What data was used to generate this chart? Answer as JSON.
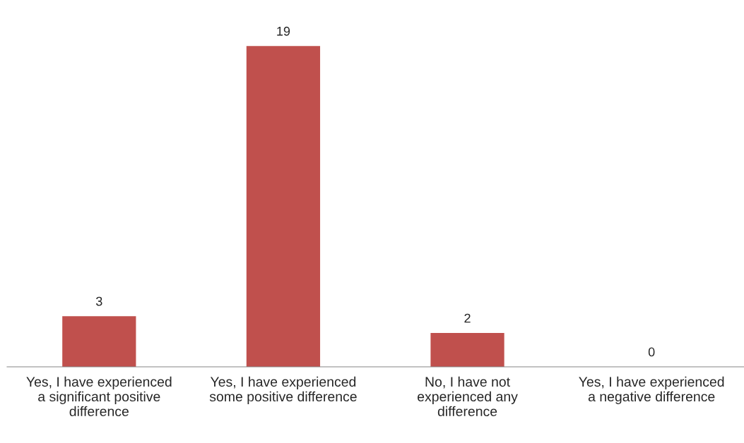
{
  "chart_data": {
    "type": "bar",
    "categories": [
      "Yes, I have experienced\na significant positive\ndifference",
      "Yes, I have experienced\nsome positive difference",
      "No, I have not\nexperienced any\ndifference",
      "Yes, I have experienced\na negative difference"
    ],
    "values": [
      3,
      19,
      2,
      0
    ],
    "color": "#c0504d",
    "data_labels": true,
    "grid": false,
    "legend": false,
    "tick_labels": "x"
  }
}
